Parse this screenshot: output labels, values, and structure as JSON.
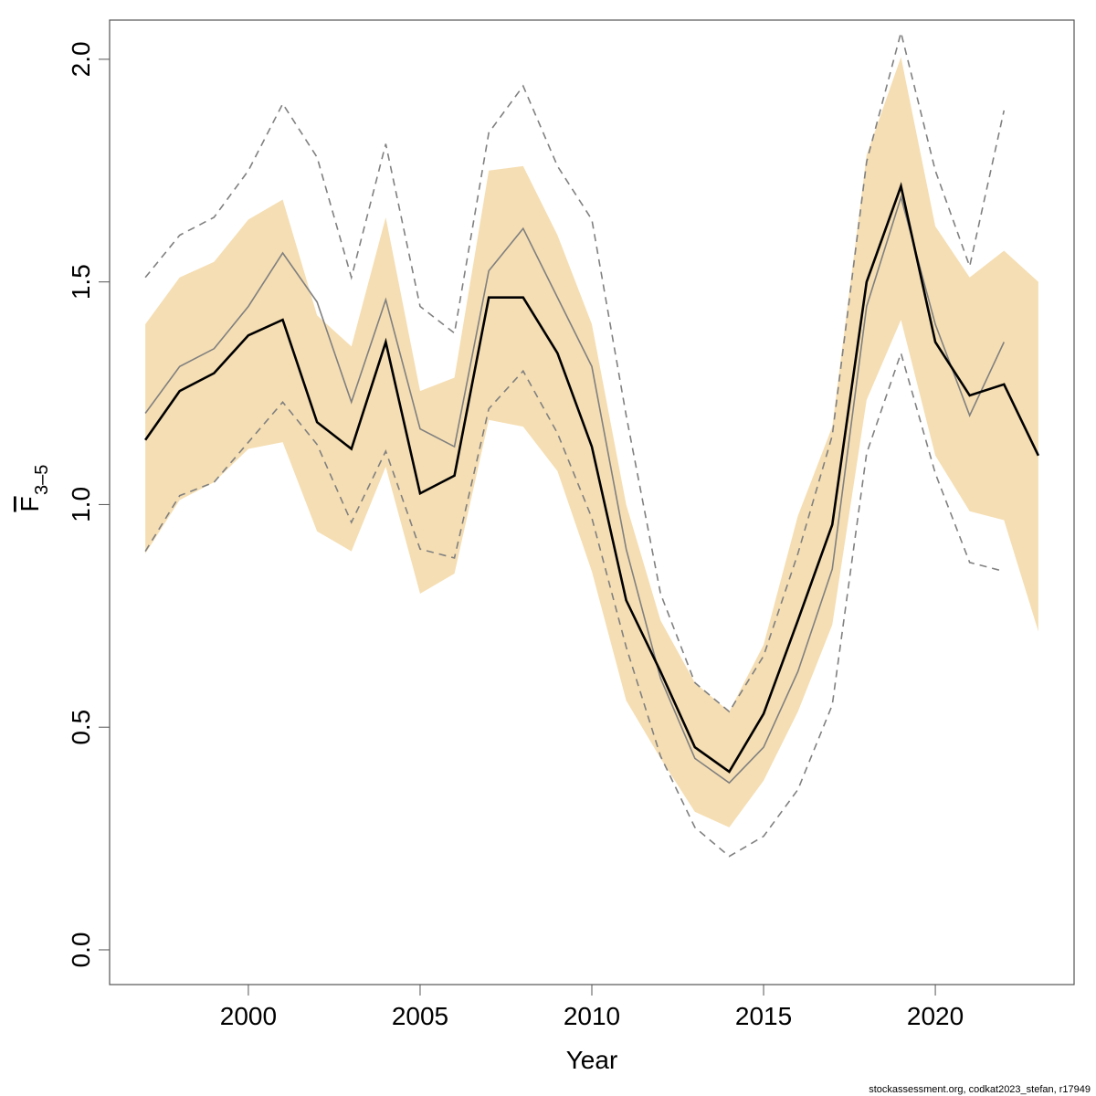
{
  "chart_data": {
    "type": "line",
    "x": [
      1997,
      1998,
      1999,
      2000,
      2001,
      2002,
      2003,
      2004,
      2005,
      2006,
      2007,
      2008,
      2009,
      2010,
      2011,
      2012,
      2013,
      2014,
      2015,
      2016,
      2017,
      2018,
      2019,
      2020,
      2021,
      2022,
      2023
    ],
    "band": {
      "color": "#f5deb3",
      "lower": [
        0.89,
        1.01,
        1.05,
        1.125,
        1.14,
        0.94,
        0.895,
        1.085,
        0.8,
        0.845,
        1.19,
        1.175,
        1.075,
        0.85,
        0.56,
        0.43,
        0.31,
        0.275,
        0.38,
        0.535,
        0.73,
        1.235,
        1.415,
        1.11,
        0.985,
        0.965,
        0.715
      ],
      "upper": [
        1.405,
        1.51,
        1.545,
        1.64,
        1.685,
        1.425,
        1.355,
        1.645,
        1.255,
        1.285,
        1.75,
        1.76,
        1.605,
        1.405,
        1.0,
        0.74,
        0.6,
        0.535,
        0.685,
        0.975,
        1.175,
        1.785,
        2.005,
        1.625,
        1.51,
        1.57,
        1.5
      ]
    },
    "series": [
      {
        "color": "#808080",
        "style": "dashed",
        "width": 1.6,
        "values": [
          1.51,
          1.605,
          1.645,
          1.75,
          1.9,
          1.78,
          1.51,
          1.81,
          1.445,
          1.385,
          1.835,
          1.94,
          1.76,
          1.64,
          1.2,
          0.8,
          0.6,
          0.535,
          0.66,
          0.89,
          1.155,
          1.77,
          2.06,
          1.75,
          1.535,
          1.885,
          null
        ]
      },
      {
        "color": "#808080",
        "style": "dashed",
        "width": 1.6,
        "values": [
          0.895,
          1.02,
          1.05,
          1.14,
          1.23,
          1.135,
          0.96,
          1.12,
          0.9,
          0.88,
          1.215,
          1.3,
          1.16,
          0.97,
          0.68,
          0.435,
          0.275,
          0.21,
          0.255,
          0.36,
          0.55,
          1.115,
          1.34,
          1.07,
          0.87,
          0.85,
          null
        ]
      },
      {
        "color": "#808080",
        "style": "solid",
        "width": 1.6,
        "values": [
          1.205,
          1.31,
          1.35,
          1.445,
          1.565,
          1.455,
          1.23,
          1.46,
          1.17,
          1.13,
          1.525,
          1.62,
          1.465,
          1.31,
          0.9,
          0.61,
          0.43,
          0.375,
          0.455,
          0.625,
          0.855,
          1.445,
          1.69,
          1.405,
          1.2,
          1.365,
          null
        ]
      },
      {
        "color": "#000000",
        "style": "solid",
        "width": 2.6,
        "values": [
          1.145,
          1.255,
          1.295,
          1.38,
          1.415,
          1.185,
          1.125,
          1.365,
          1.025,
          1.065,
          1.465,
          1.465,
          1.34,
          1.13,
          0.785,
          0.625,
          0.455,
          0.4,
          0.53,
          0.74,
          0.955,
          1.5,
          1.715,
          1.365,
          1.245,
          1.27,
          1.11
        ]
      }
    ],
    "xlim": [
      1995.96,
      2024.04
    ],
    "xticks": [
      2000,
      2005,
      2010,
      2015,
      2020
    ],
    "ylim": [
      -0.078,
      2.088
    ],
    "yticks": [
      {
        "value": 0,
        "label": "0.0"
      },
      0.5,
      {
        "value": 1,
        "label": "1.0"
      },
      1.5,
      {
        "value": 2,
        "label": "2.0"
      }
    ],
    "x_label": "Year",
    "y_label": "F",
    "y_label_sub": "3–5",
    "footer": "stockassessment.org, codkat2023_stefan, r17949"
  }
}
